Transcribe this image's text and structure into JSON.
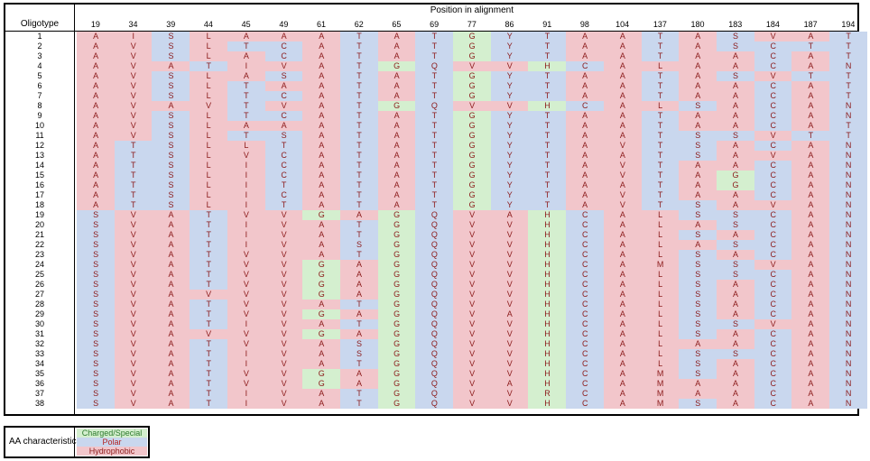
{
  "table": {
    "row_header": "Oligotype",
    "col_title": "Position in alignment",
    "positions": [
      "19",
      "34",
      "39",
      "44",
      "45",
      "49",
      "61",
      "62",
      "65",
      "69",
      "77",
      "86",
      "91",
      "98",
      "104",
      "137",
      "180",
      "183",
      "184",
      "187",
      "194"
    ],
    "rows": [
      {
        "id": "1",
        "seq": "AISLAAATATGYTAATASVAT"
      },
      {
        "id": "2",
        "seq": "AVSLTCATATGYTAATASCTT"
      },
      {
        "id": "3",
        "seq": "AVSLACATATGYTAATAACAT"
      },
      {
        "id": "4",
        "seq": "AVATIVATGQVVHCALAACAN"
      },
      {
        "id": "5",
        "seq": "AVSLASATATGYTAATASVTT"
      },
      {
        "id": "6",
        "seq": "AVSLTAATATGYTAATAACAT"
      },
      {
        "id": "7",
        "seq": "AVSLTCATATGYTAATAACAT"
      },
      {
        "id": "8",
        "seq": "AVAVTVATGQVVHCALSACAN"
      },
      {
        "id": "9",
        "seq": "AVSLTCATATGYTAATAACAN"
      },
      {
        "id": "10",
        "seq": "AVSLAAATATGYTAATAACAT"
      },
      {
        "id": "11",
        "seq": "AVSLTSATATGYTAATSSVTT"
      },
      {
        "id": "12",
        "seq": "ATSLLTATATGYTAVTSACAN"
      },
      {
        "id": "13",
        "seq": "ATSLVCATATGYTAATSAVAN"
      },
      {
        "id": "14",
        "seq": "ATSLICATATGYTAVTAACAN"
      },
      {
        "id": "15",
        "seq": "ATSLICATATGYTAVTAGCAN"
      },
      {
        "id": "16",
        "seq": "ATSLITATATGYTAATAGCAN"
      },
      {
        "id": "17",
        "seq": "ATSLICATATGYTAVTAACAN"
      },
      {
        "id": "18",
        "seq": "ATSLITATATGYTAVTSAVAN"
      },
      {
        "id": "19",
        "seq": "SVATVVGAGQVAHCALSSCAN"
      },
      {
        "id": "20",
        "seq": "SVATIVATGQVVHCALASCAN"
      },
      {
        "id": "21",
        "seq": "SVATIVATGQVVHCALSACAN"
      },
      {
        "id": "22",
        "seq": "SVATIVASGQVVHCALASCAN"
      },
      {
        "id": "23",
        "seq": "SVATVVATGQVVHCALSACAN"
      },
      {
        "id": "24",
        "seq": "SVATVVGAGQVVHCAMSSVAN"
      },
      {
        "id": "25",
        "seq": "SVATVVGAGQVVHCALSSCAN"
      },
      {
        "id": "26",
        "seq": "SVATVVGAGQVVHCALSACAN"
      },
      {
        "id": "27",
        "seq": "SVAVVVGAGQVVHCALSACAN"
      },
      {
        "id": "28",
        "seq": "SVATVVATGQVVHCALSACAN"
      },
      {
        "id": "29",
        "seq": "SVATVVGAGQVAHCALSACAN"
      },
      {
        "id": "30",
        "seq": "SVATIVATGQVVHCALSSVAN"
      },
      {
        "id": "31",
        "seq": "SVAVVVGAGQVVHCALSACAN"
      },
      {
        "id": "32",
        "seq": "SVATVVASGQVVHCALAACAN"
      },
      {
        "id": "33",
        "seq": "SVATIVASGQVVHCALSSCAN"
      },
      {
        "id": "34",
        "seq": "SVATIVATGQVVHCALSACAN"
      },
      {
        "id": "35",
        "seq": "SVATVVGAGQVVHCAMSACAN"
      },
      {
        "id": "36",
        "seq": "SVATVVGAGQVAHCAMAACAN"
      },
      {
        "id": "37",
        "seq": "SVATIVATGQVVRCAMAACAN"
      },
      {
        "id": "38",
        "seq": "SVATIVATGQVVHCAMSACAN"
      }
    ]
  },
  "legend": {
    "title": "AA characteristics",
    "charged": "Charged/Special",
    "polar": "Polar",
    "hydrophobic": "Hydrophobic"
  },
  "colors": {
    "hydrophobic_bg": "#f2c6cb",
    "polar_bg": "#c9d7ee",
    "charged_bg": "#d4efcf",
    "letter": "#8b1a1a"
  }
}
